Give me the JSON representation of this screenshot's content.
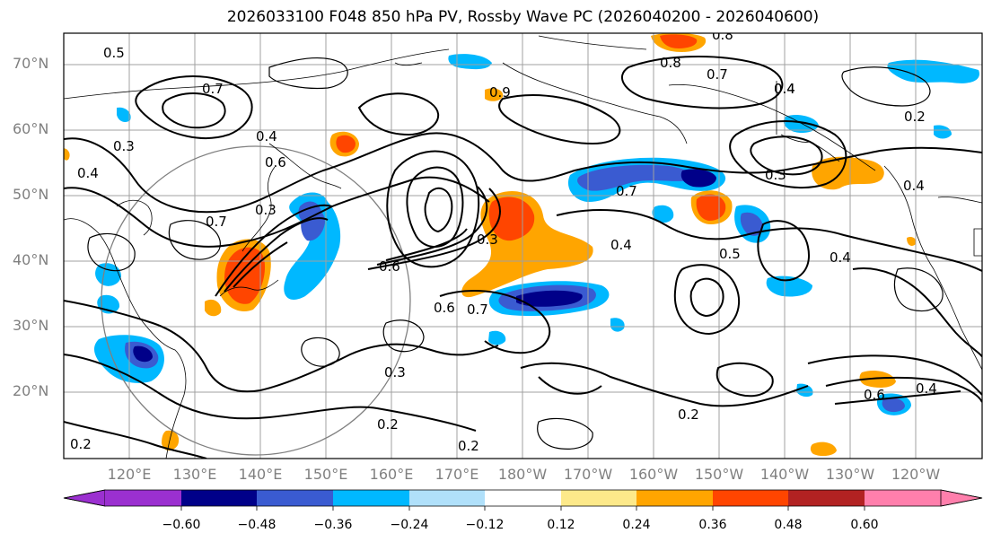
{
  "title": "2026033100 F048 850 hPa PV, Rossby Wave PC (2026040200 - 2026040600)",
  "map": {
    "lat_labels": [
      "70°N",
      "60°N",
      "50°N",
      "40°N",
      "30°N",
      "20°N"
    ],
    "lon_labels": [
      "120°E",
      "130°E",
      "140°E",
      "150°E",
      "160°E",
      "170°E",
      "180°W",
      "170°W",
      "160°W",
      "150°W",
      "140°W",
      "130°W",
      "120°W"
    ],
    "contour_labels": [
      "0.5",
      "0.7",
      "0.4",
      "0.3",
      "0.6",
      "0.7",
      "0.4",
      "0.3",
      "0.8",
      "0.8",
      "0.7",
      "0.4",
      "0.2",
      "0.3",
      "0.4",
      "0.2",
      "0.6",
      "0.4",
      "0.3",
      "0.2",
      "0.2",
      "0.2",
      "0.3",
      "0.6",
      "0.7",
      "0.5",
      "0.4",
      "0.6",
      "0.4",
      "0.7",
      "0.9",
      "0.4"
    ]
  },
  "colorbar": {
    "ticks": [
      "−0.60",
      "−0.48",
      "−0.36",
      "−0.24",
      "−0.12",
      "0.12",
      "0.24",
      "0.36",
      "0.48",
      "0.60"
    ],
    "bins": [
      "#9b30d0",
      "#000089",
      "#3a5bd1",
      "#00b8ff",
      "#b0e0fa",
      "#ffffff",
      "#fde98a",
      "#ffa500",
      "#ff4500",
      "#b22222",
      "#ff7fac"
    ]
  },
  "colors": {
    "contour": "#000000",
    "grid": "#a0a0a0",
    "coast": "#000000",
    "axis_label": "#808080"
  }
}
